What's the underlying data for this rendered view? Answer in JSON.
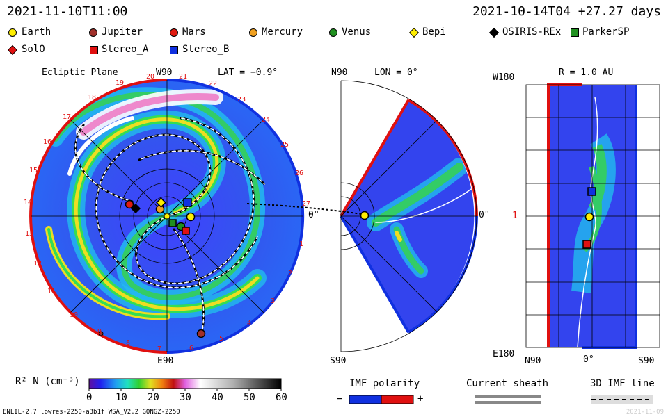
{
  "header": {
    "model_time": "2021-11-10T11:00",
    "run_info": "2021-10-14T04 +27.27 days"
  },
  "legend": [
    {
      "name": "Earth",
      "color": "#ffee00",
      "shape": "circle"
    },
    {
      "name": "Jupiter",
      "color": "#a0302a",
      "shape": "circle"
    },
    {
      "name": "Mars",
      "color": "#e01a10",
      "shape": "circle"
    },
    {
      "name": "Mercury",
      "color": "#f0a020",
      "shape": "circle"
    },
    {
      "name": "Venus",
      "color": "#209020",
      "shape": "circle"
    },
    {
      "name": "Bepi",
      "color": "#ffee00",
      "shape": "diamond"
    },
    {
      "name": "OSIRIS-REx",
      "color": "#000000",
      "shape": "diamond"
    },
    {
      "name": "ParkerSP",
      "color": "#209020",
      "shape": "square"
    },
    {
      "name": "SolO",
      "color": "#e01010",
      "shape": "diamond"
    },
    {
      "name": "Stereo_A",
      "color": "#e01010",
      "shape": "square"
    },
    {
      "name": "Stereo_B",
      "color": "#1030e0",
      "shape": "square"
    }
  ],
  "ecliptic": {
    "title": "Ecliptic Plane",
    "top_label": "W90",
    "lat_label": "LAT = −0.9°",
    "bottom_label": "E90",
    "right_label": "0°",
    "carrington_rotations": [
      "19",
      "20",
      "21",
      "22",
      "23",
      "24",
      "25",
      "26",
      "27",
      "1",
      "2",
      "3",
      "4",
      "5",
      "6",
      "7",
      "8",
      "9",
      "10",
      "11",
      "12",
      "13",
      "14",
      "15",
      "16",
      "17",
      "18"
    ]
  },
  "meridional": {
    "top_label": "N90",
    "lon_label": "LON = 0°",
    "bottom_label": "S90",
    "right_label": "0°"
  },
  "sphere": {
    "r_label": "R = 1.0 AU",
    "top_label": "W180",
    "bottom_label": "E180",
    "mid_label": "1",
    "x_left": "N90",
    "x_mid": "0°",
    "x_right": "S90"
  },
  "colorbar": {
    "label": "R² N (cm⁻³)",
    "ticks": [
      "0",
      "10",
      "20",
      "30",
      "40",
      "50",
      "60"
    ]
  },
  "imf": {
    "title": "IMF polarity",
    "minus": "−",
    "plus": "+",
    "sheath_title": "Current sheath",
    "line_title": "3D IMF line"
  },
  "footer": {
    "left": "ENLIL-2.7 lowres-2250-a3b1f WSA_V2.2 GONGZ-2250",
    "right": "2021-11-09"
  }
}
